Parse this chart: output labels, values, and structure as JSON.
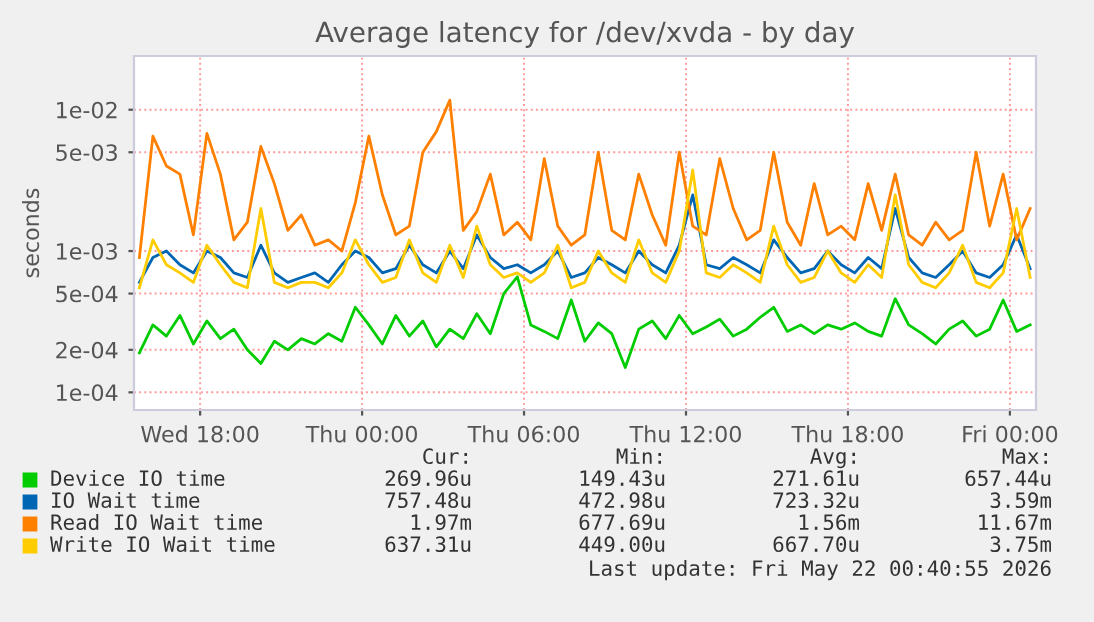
{
  "chart_data": {
    "type": "line",
    "title": "Average latency for /dev/xvda - by day",
    "ylabel": "seconds",
    "log": "y",
    "grid": true,
    "legend": "bottom",
    "marker": "none",
    "line_style": "solid",
    "x": [
      "2026-05-20T15:45",
      "2026-05-20T16:15",
      "2026-05-20T16:45",
      "2026-05-20T17:15",
      "2026-05-20T17:45",
      "2026-05-20T18:15",
      "2026-05-20T18:45",
      "2026-05-20T19:15",
      "2026-05-20T19:45",
      "2026-05-20T20:15",
      "2026-05-20T20:45",
      "2026-05-20T21:15",
      "2026-05-20T21:45",
      "2026-05-20T22:15",
      "2026-05-20T22:45",
      "2026-05-20T23:15",
      "2026-05-20T23:45",
      "2026-05-21T00:15",
      "2026-05-21T00:45",
      "2026-05-21T01:15",
      "2026-05-21T01:45",
      "2026-05-21T02:15",
      "2026-05-21T02:45",
      "2026-05-21T03:15",
      "2026-05-21T03:45",
      "2026-05-21T04:15",
      "2026-05-21T04:45",
      "2026-05-21T05:15",
      "2026-05-21T05:45",
      "2026-05-21T06:15",
      "2026-05-21T06:45",
      "2026-05-21T07:15",
      "2026-05-21T07:45",
      "2026-05-21T08:15",
      "2026-05-21T08:45",
      "2026-05-21T09:15",
      "2026-05-21T09:45",
      "2026-05-21T10:15",
      "2026-05-21T10:45",
      "2026-05-21T11:15",
      "2026-05-21T11:45",
      "2026-05-21T12:15",
      "2026-05-21T12:45",
      "2026-05-21T13:15",
      "2026-05-21T13:45",
      "2026-05-21T14:15",
      "2026-05-21T14:45",
      "2026-05-21T15:15",
      "2026-05-21T15:45",
      "2026-05-21T16:15",
      "2026-05-21T16:45",
      "2026-05-21T17:15",
      "2026-05-21T17:45",
      "2026-05-21T18:15",
      "2026-05-21T18:45",
      "2026-05-21T19:15",
      "2026-05-21T19:45",
      "2026-05-21T20:15",
      "2026-05-21T20:45",
      "2026-05-21T21:15",
      "2026-05-21T21:45",
      "2026-05-21T22:15",
      "2026-05-21T22:45",
      "2026-05-21T23:15",
      "2026-05-21T23:45",
      "2026-05-22T00:15",
      "2026-05-22T00:45"
    ],
    "xlim": [
      "2026-05-20T15:33",
      "2026-05-22T00:58"
    ],
    "xticks": [
      {
        "value": "2026-05-20T18:00",
        "label": "Wed 18:00"
      },
      {
        "value": "2026-05-21T00:00",
        "label": "Thu 00:00"
      },
      {
        "value": "2026-05-21T06:00",
        "label": "Thu 06:00"
      },
      {
        "value": "2026-05-21T12:00",
        "label": "Thu 12:00"
      },
      {
        "value": "2026-05-21T18:00",
        "label": "Thu 18:00"
      },
      {
        "value": "2026-05-22T00:00",
        "label": "Fri 00:00"
      }
    ],
    "ylim": [
      7.5e-05,
      0.024
    ],
    "yticks": [
      {
        "value": 0.0001,
        "label": "1e-04"
      },
      {
        "value": 0.0002,
        "label": "2e-04"
      },
      {
        "value": 0.0005,
        "label": "5e-04"
      },
      {
        "value": 0.001,
        "label": "1e-03"
      },
      {
        "value": 0.005,
        "label": "5e-03"
      },
      {
        "value": 0.01,
        "label": "1e-02"
      }
    ],
    "series": [
      {
        "name": "Device IO time",
        "color": "#00cc00",
        "values": [
          0.00019,
          0.0003,
          0.00025,
          0.00035,
          0.00022,
          0.00032,
          0.00024,
          0.00028,
          0.0002,
          0.00016,
          0.00023,
          0.0002,
          0.00024,
          0.00022,
          0.00026,
          0.00023,
          0.0004,
          0.0003,
          0.00022,
          0.00035,
          0.00025,
          0.00032,
          0.00021,
          0.00028,
          0.00024,
          0.00036,
          0.00026,
          0.0005,
          0.000657,
          0.0003,
          0.00027,
          0.00024,
          0.00045,
          0.00023,
          0.00031,
          0.00026,
          0.00015,
          0.00028,
          0.00032,
          0.00024,
          0.00035,
          0.00026,
          0.00029,
          0.00033,
          0.00025,
          0.00028,
          0.00034,
          0.0004,
          0.00027,
          0.0003,
          0.00026,
          0.0003,
          0.00028,
          0.00031,
          0.00027,
          0.00025,
          0.00046,
          0.0003,
          0.00026,
          0.00022,
          0.00028,
          0.00032,
          0.00025,
          0.00028,
          0.00045,
          0.00027,
          0.0003
        ]
      },
      {
        "name": "IO Wait time",
        "color": "#0066b3",
        "values": [
          0.0006,
          0.0009,
          0.001,
          0.0008,
          0.0007,
          0.001,
          0.0009,
          0.0007,
          0.00065,
          0.0011,
          0.0007,
          0.0006,
          0.00065,
          0.0007,
          0.0006,
          0.0008,
          0.001,
          0.0009,
          0.0007,
          0.00075,
          0.0011,
          0.0008,
          0.0007,
          0.001,
          0.00075,
          0.0013,
          0.0009,
          0.00075,
          0.0008,
          0.0007,
          0.0008,
          0.001,
          0.00065,
          0.0007,
          0.0009,
          0.0008,
          0.0007,
          0.001,
          0.0008,
          0.0007,
          0.0011,
          0.0025,
          0.0008,
          0.00075,
          0.0009,
          0.0008,
          0.0007,
          0.0012,
          0.0009,
          0.0007,
          0.00075,
          0.001,
          0.0008,
          0.0007,
          0.0009,
          0.00075,
          0.002,
          0.0009,
          0.0007,
          0.00065,
          0.0008,
          0.001,
          0.0007,
          0.00065,
          0.0008,
          0.0013,
          0.00075
        ]
      },
      {
        "name": "Read IO Wait time",
        "color": "#ff8000",
        "values": [
          0.0009,
          0.0065,
          0.004,
          0.0035,
          0.0013,
          0.0068,
          0.0035,
          0.0012,
          0.0016,
          0.0055,
          0.003,
          0.0014,
          0.0018,
          0.0011,
          0.0012,
          0.001,
          0.0022,
          0.0065,
          0.0025,
          0.0013,
          0.0015,
          0.005,
          0.007,
          0.0117,
          0.0014,
          0.0019,
          0.0035,
          0.0013,
          0.0016,
          0.0012,
          0.0045,
          0.0015,
          0.0011,
          0.0013,
          0.005,
          0.0014,
          0.0012,
          0.0035,
          0.0018,
          0.0011,
          0.005,
          0.0015,
          0.0013,
          0.0045,
          0.002,
          0.0012,
          0.0014,
          0.005,
          0.0016,
          0.0011,
          0.003,
          0.0013,
          0.0015,
          0.0012,
          0.003,
          0.0014,
          0.0035,
          0.0013,
          0.0011,
          0.0016,
          0.0012,
          0.0014,
          0.005,
          0.0015,
          0.0035,
          0.0012,
          0.002
        ]
      },
      {
        "name": "Write IO Wait time",
        "color": "#ffcc00",
        "values": [
          0.00055,
          0.0012,
          0.0008,
          0.0007,
          0.0006,
          0.0011,
          0.0008,
          0.0006,
          0.00055,
          0.002,
          0.0006,
          0.00055,
          0.0006,
          0.0006,
          0.00055,
          0.0007,
          0.0012,
          0.0008,
          0.0006,
          0.00065,
          0.0012,
          0.0007,
          0.0006,
          0.0011,
          0.00065,
          0.0015,
          0.0008,
          0.00065,
          0.0007,
          0.0006,
          0.0007,
          0.0011,
          0.00055,
          0.0006,
          0.001,
          0.0007,
          0.0006,
          0.0012,
          0.0007,
          0.0006,
          0.001,
          0.00375,
          0.0007,
          0.00065,
          0.0008,
          0.0007,
          0.0006,
          0.0015,
          0.0008,
          0.0006,
          0.00065,
          0.001,
          0.0007,
          0.0006,
          0.0008,
          0.00065,
          0.0025,
          0.0008,
          0.0006,
          0.00055,
          0.0007,
          0.0011,
          0.0006,
          0.00055,
          0.0007,
          0.002,
          0.00065
        ]
      }
    ],
    "annotations": [
      "Cur:",
      "Min:",
      "Avg:",
      "Max:",
      "269.96u",
      "149.43u",
      "271.61u",
      "657.44u",
      "757.48u",
      "472.98u",
      "723.32u",
      "3.59m",
      "1.97m",
      "677.69u",
      "1.56m",
      "11.67m",
      "637.31u",
      "449.00u",
      "667.70u",
      "3.75m",
      "Last update: Fri May 22 00:40:55 2026"
    ]
  }
}
